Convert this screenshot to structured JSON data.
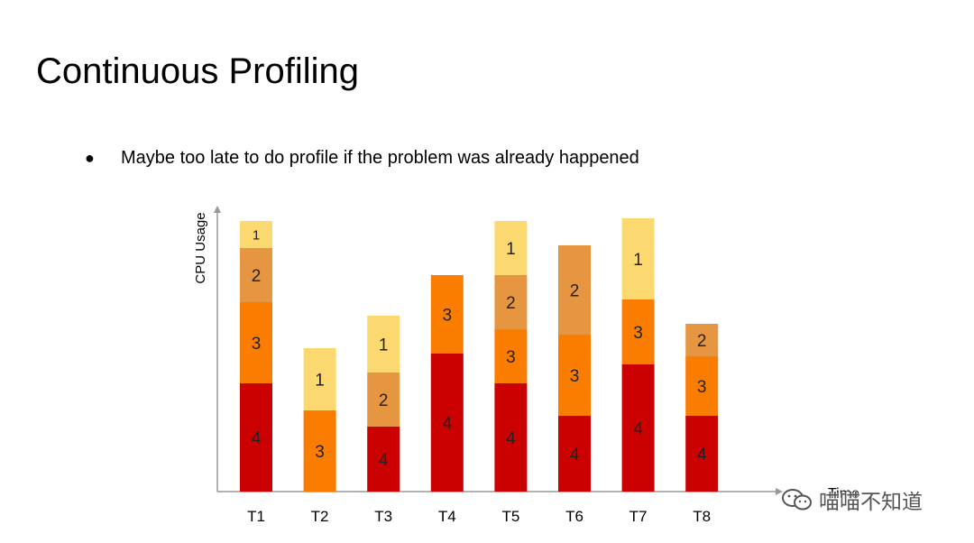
{
  "slide": {
    "title": "Continuous Profiling",
    "bullet": "Maybe too late to do profile if the problem was already happened",
    "watermark": "喵喵不知道"
  },
  "colors": {
    "1": "#fbd970",
    "2": "#e69540",
    "3": "#fb7d00",
    "4": "#cb0101",
    "axis": "#999999"
  },
  "chart_data": {
    "type": "bar",
    "stacked": true,
    "xlabel": "Time",
    "ylabel": "CPU Usage",
    "ylim": [
      0,
      100
    ],
    "categories": [
      "T1",
      "T2",
      "T3",
      "T4",
      "T5",
      "T6",
      "T7",
      "T8"
    ],
    "stacks": [
      [
        {
          "label": "4",
          "value": 40
        },
        {
          "label": "3",
          "value": 30
        },
        {
          "label": "2",
          "value": 20
        },
        {
          "label": "1",
          "value": 10
        }
      ],
      [
        {
          "label": "3",
          "value": 30
        },
        {
          "label": "1",
          "value": 23
        }
      ],
      [
        {
          "label": "4",
          "value": 24
        },
        {
          "label": "2",
          "value": 20
        },
        {
          "label": "1",
          "value": 21
        }
      ],
      [
        {
          "label": "4",
          "value": 51
        },
        {
          "label": "3",
          "value": 29
        }
      ],
      [
        {
          "label": "4",
          "value": 40
        },
        {
          "label": "3",
          "value": 20
        },
        {
          "label": "2",
          "value": 20
        },
        {
          "label": "1",
          "value": 20
        }
      ],
      [
        {
          "label": "4",
          "value": 28
        },
        {
          "label": "3",
          "value": 30
        },
        {
          "label": "2",
          "value": 33
        }
      ],
      [
        {
          "label": "4",
          "value": 47
        },
        {
          "label": "3",
          "value": 24
        },
        {
          "label": "1",
          "value": 30
        }
      ],
      [
        {
          "label": "4",
          "value": 28
        },
        {
          "label": "3",
          "value": 22
        },
        {
          "label": "2",
          "value": 12
        }
      ]
    ]
  }
}
